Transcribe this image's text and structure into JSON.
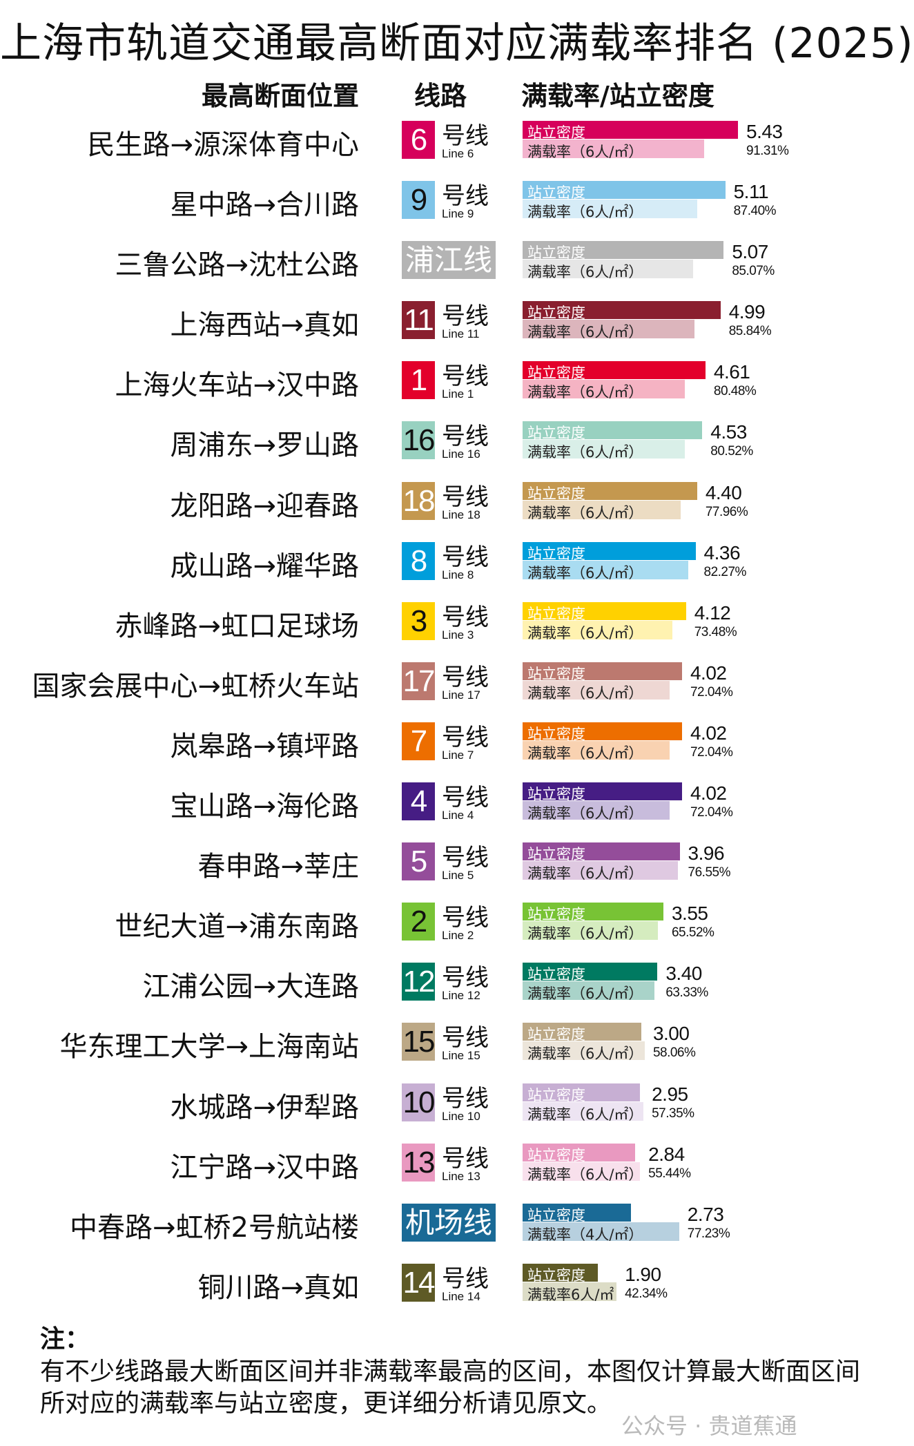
{
  "title": "上海市轨道交通最高断面对应满载率排名 (2025)",
  "headers": {
    "section": "最高断面位置",
    "line": "线路",
    "metric": "满载率/站立密度"
  },
  "chart_data": {
    "type": "bar",
    "density_label": "站立密度",
    "load_label_default": "满载率（6人/㎡）",
    "density_max": 5.43,
    "load_max": 100,
    "rows": [
      {
        "section": "民生路→源深体育中心",
        "line_num": "6",
        "line_zh": "号线",
        "line_en": "Line 6",
        "color": "#d6005b",
        "light": "#f3b3cd",
        "density": 5.43,
        "density_text": "5.43",
        "load": 91.31,
        "load_text": "91.31%",
        "load_label": "满载率（6人/㎡）"
      },
      {
        "section": "星中路→合川路",
        "line_num": "9",
        "line_zh": "号线",
        "line_en": "Line 9",
        "color": "#7fc4e8",
        "light": "#d6ecf7",
        "density": 5.11,
        "density_text": "5.11",
        "load": 87.4,
        "load_text": "87.40%",
        "load_label": "满载率（6人/㎡）",
        "num_color": "#111"
      },
      {
        "section": "三鲁公路→沈杜公路",
        "line_num": "浦江线",
        "line_zh": "",
        "line_en": "",
        "color": "#b4b4b4",
        "light": "#e6e6e6",
        "density": 5.07,
        "density_text": "5.07",
        "load": 85.07,
        "load_text": "85.07%",
        "load_label": "满载率（6人/㎡）",
        "wide": true
      },
      {
        "section": "上海西站→真如",
        "line_num": "11",
        "line_zh": "号线",
        "line_en": "Line 11",
        "color": "#8a1f2f",
        "light": "#dcb5bc",
        "density": 4.99,
        "density_text": "4.99",
        "load": 85.84,
        "load_text": "85.84%",
        "load_label": "满载率（6人/㎡）"
      },
      {
        "section": "上海火车站→汉中路",
        "line_num": "1",
        "line_zh": "号线",
        "line_en": "Line 1",
        "color": "#e3002b",
        "light": "#f5b3c3",
        "density": 4.61,
        "density_text": "4.61",
        "load": 80.48,
        "load_text": "80.48%",
        "load_label": "满载率（6人/㎡）"
      },
      {
        "section": "周浦东→罗山路",
        "line_num": "16",
        "line_zh": "号线",
        "line_en": "Line 16",
        "color": "#98d1c0",
        "light": "#d9efe8",
        "density": 4.53,
        "density_text": "4.53",
        "load": 80.52,
        "load_text": "80.52%",
        "load_label": "满载率（6人/㎡）",
        "num_color": "#111"
      },
      {
        "section": "龙阳路→迎春路",
        "line_num": "18",
        "line_zh": "号线",
        "line_en": "Line 18",
        "color": "#c4984f",
        "light": "#ecdcc3",
        "density": 4.4,
        "density_text": "4.40",
        "load": 77.96,
        "load_text": "77.96%",
        "load_label": "满载率（6人/㎡）"
      },
      {
        "section": "成山路→耀华路",
        "line_num": "8",
        "line_zh": "号线",
        "line_en": "Line 8",
        "color": "#009edb",
        "light": "#a9dcf1",
        "density": 4.36,
        "density_text": "4.36",
        "load": 82.27,
        "load_text": "82.27%",
        "load_label": "满载率（6人/㎡）"
      },
      {
        "section": "赤峰路→虹口足球场",
        "line_num": "3",
        "line_zh": "号线",
        "line_en": "Line 3",
        "color": "#ffd100",
        "light": "#fff2b0",
        "density": 4.12,
        "density_text": "4.12",
        "load": 73.48,
        "load_text": "73.48%",
        "load_label": "满载率（6人/㎡）",
        "num_color": "#111"
      },
      {
        "section": "国家会展中心→虹桥火车站",
        "line_num": "17",
        "line_zh": "号线",
        "line_en": "Line 17",
        "color": "#bc796f",
        "light": "#eed7d3",
        "density": 4.02,
        "density_text": "4.02",
        "load": 72.04,
        "load_text": "72.04%",
        "load_label": "满载率（6人/㎡）"
      },
      {
        "section": "岚皋路→镇坪路",
        "line_num": "7",
        "line_zh": "号线",
        "line_en": "Line 7",
        "color": "#ed6e00",
        "light": "#f9d2b1",
        "density": 4.02,
        "density_text": "4.02",
        "load": 72.04,
        "load_text": "72.04%",
        "load_label": "满载率（6人/㎡）"
      },
      {
        "section": "宝山路→海伦路",
        "line_num": "4",
        "line_zh": "号线",
        "line_en": "Line 4",
        "color": "#461d84",
        "light": "#c8bcdc",
        "density": 4.02,
        "density_text": "4.02",
        "load": 72.04,
        "load_text": "72.04%",
        "load_label": "满载率（6人/㎡）"
      },
      {
        "section": "春申路→莘庄",
        "line_num": "5",
        "line_zh": "号线",
        "line_en": "Line 5",
        "color": "#944d9a",
        "light": "#dfc9e1",
        "density": 3.96,
        "density_text": "3.96",
        "load": 76.55,
        "load_text": "76.55%",
        "load_label": "满载率（6人/㎡）"
      },
      {
        "section": "世纪大道→浦东南路",
        "line_num": "2",
        "line_zh": "号线",
        "line_en": "Line 2",
        "color": "#78c335",
        "light": "#d5ecbf",
        "density": 3.55,
        "density_text": "3.55",
        "load": 65.52,
        "load_text": "65.52%",
        "load_label": "满载率（6人/㎡）",
        "num_color": "#111"
      },
      {
        "section": "江浦公园→大连路",
        "line_num": "12",
        "line_zh": "号线",
        "line_en": "Line 12",
        "color": "#007a61",
        "light": "#a9d3c9",
        "density": 3.4,
        "density_text": "3.40",
        "load": 63.33,
        "load_text": "63.33%",
        "load_label": "满载率（6人/㎡）"
      },
      {
        "section": "华东理工大学→上海南站",
        "line_num": "15",
        "line_zh": "号线",
        "line_en": "Line 15",
        "color": "#bca886",
        "light": "#ece5da",
        "density": 3.0,
        "density_text": "3.00",
        "load": 58.06,
        "load_text": "58.06%",
        "load_label": "满载率（6人/㎡）",
        "num_color": "#111"
      },
      {
        "section": "水城路→伊犁路",
        "line_num": "10",
        "line_zh": "号线",
        "line_en": "Line 10",
        "color": "#c7afd3",
        "light": "#ede4f2",
        "density": 2.95,
        "density_text": "2.95",
        "load": 57.35,
        "load_text": "57.35%",
        "load_label": "满载率（6人/㎡）",
        "num_color": "#111"
      },
      {
        "section": "江宁路→汉中路",
        "line_num": "13",
        "line_zh": "号线",
        "line_en": "Line 13",
        "color": "#e999c0",
        "light": "#f8e0ec",
        "density": 2.84,
        "density_text": "2.84",
        "load": 55.44,
        "load_text": "55.44%",
        "load_label": "满载率（6人/㎡）",
        "num_color": "#111"
      },
      {
        "section": "中春路→虹桥2号航站楼",
        "line_num": "机场线",
        "line_zh": "",
        "line_en": "",
        "color": "#1a6a96",
        "light": "#b7d0df",
        "density": 2.73,
        "density_text": "2.73",
        "load": 77.23,
        "load_text": "77.23%",
        "load_label": "满载率（4人/㎡）",
        "wide": true
      },
      {
        "section": "铜川路→真如",
        "line_num": "14",
        "line_zh": "号线",
        "line_en": "Line 14",
        "color": "#5e5a26",
        "light": "#dcdcc6",
        "density": 1.9,
        "density_text": "1.90",
        "load": 42.34,
        "load_text": "42.34%",
        "load_label": "满载率6人/㎡"
      }
    ]
  },
  "note": {
    "head": "注：",
    "body": "有不少线路最大断面区间并非满载率最高的区间，本图仅计算最大断面区间所对应的满载率与站立密度，更详细分析请见原文。"
  },
  "watermark": "公众号 · 贵道蕉通"
}
